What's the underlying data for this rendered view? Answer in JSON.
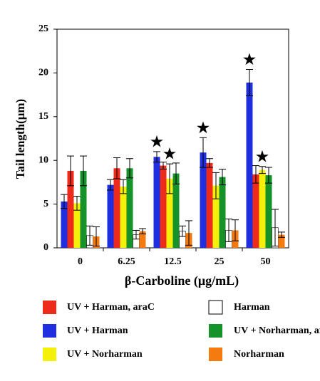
{
  "chart_data": {
    "type": "bar",
    "y_label": "Tail length(μm)",
    "x_label": "β-Carboline (μg/mL)",
    "categories": [
      "0",
      "6.25",
      "12.5",
      "25",
      "50"
    ],
    "ylim": [
      0,
      25
    ],
    "yticks": [
      0,
      5,
      10,
      15,
      20,
      25
    ],
    "grid": false,
    "series": [
      {
        "name": "UV + Harman",
        "color": "#1f2fe0",
        "values": [
          5.3,
          7.2,
          10.4,
          10.9,
          18.9
        ],
        "errors": [
          0.8,
          0.6,
          0.6,
          1.7,
          1.5
        ],
        "markers": [
          null,
          null,
          "★",
          "★",
          "★"
        ]
      },
      {
        "name": "UV + Harman, araC",
        "color": "#ee2a1a",
        "values": [
          8.8,
          9.1,
          9.4,
          9.7,
          8.4
        ],
        "errors": [
          1.7,
          1.2,
          0.4,
          0.5,
          1.0
        ]
      },
      {
        "name": "UV + Norharman",
        "color": "#f5f00a",
        "values": [
          5.1,
          7.0,
          7.9,
          7.1,
          8.9
        ],
        "errors": [
          0.8,
          0.8,
          1.7,
          1.5,
          0.4
        ],
        "markers": [
          null,
          null,
          "★",
          null,
          "★"
        ]
      },
      {
        "name": "UV + Norharman, araC",
        "color": "#15922a",
        "values": [
          8.8,
          9.1,
          8.5,
          8.1,
          8.3
        ],
        "errors": [
          1.7,
          1.1,
          1.2,
          0.9,
          0.9
        ]
      },
      {
        "name": "Harman",
        "color": "#ffffff",
        "values": [
          1.4,
          1.5,
          1.9,
          2.0,
          2.3
        ],
        "errors": [
          1.1,
          0.5,
          0.6,
          1.3,
          2.1
        ]
      },
      {
        "name": "Norharman",
        "color": "#f57a10",
        "values": [
          1.3,
          1.9,
          1.7,
          2.0,
          1.5
        ],
        "errors": [
          1.1,
          0.3,
          1.4,
          1.2,
          0.3
        ]
      }
    ]
  }
}
